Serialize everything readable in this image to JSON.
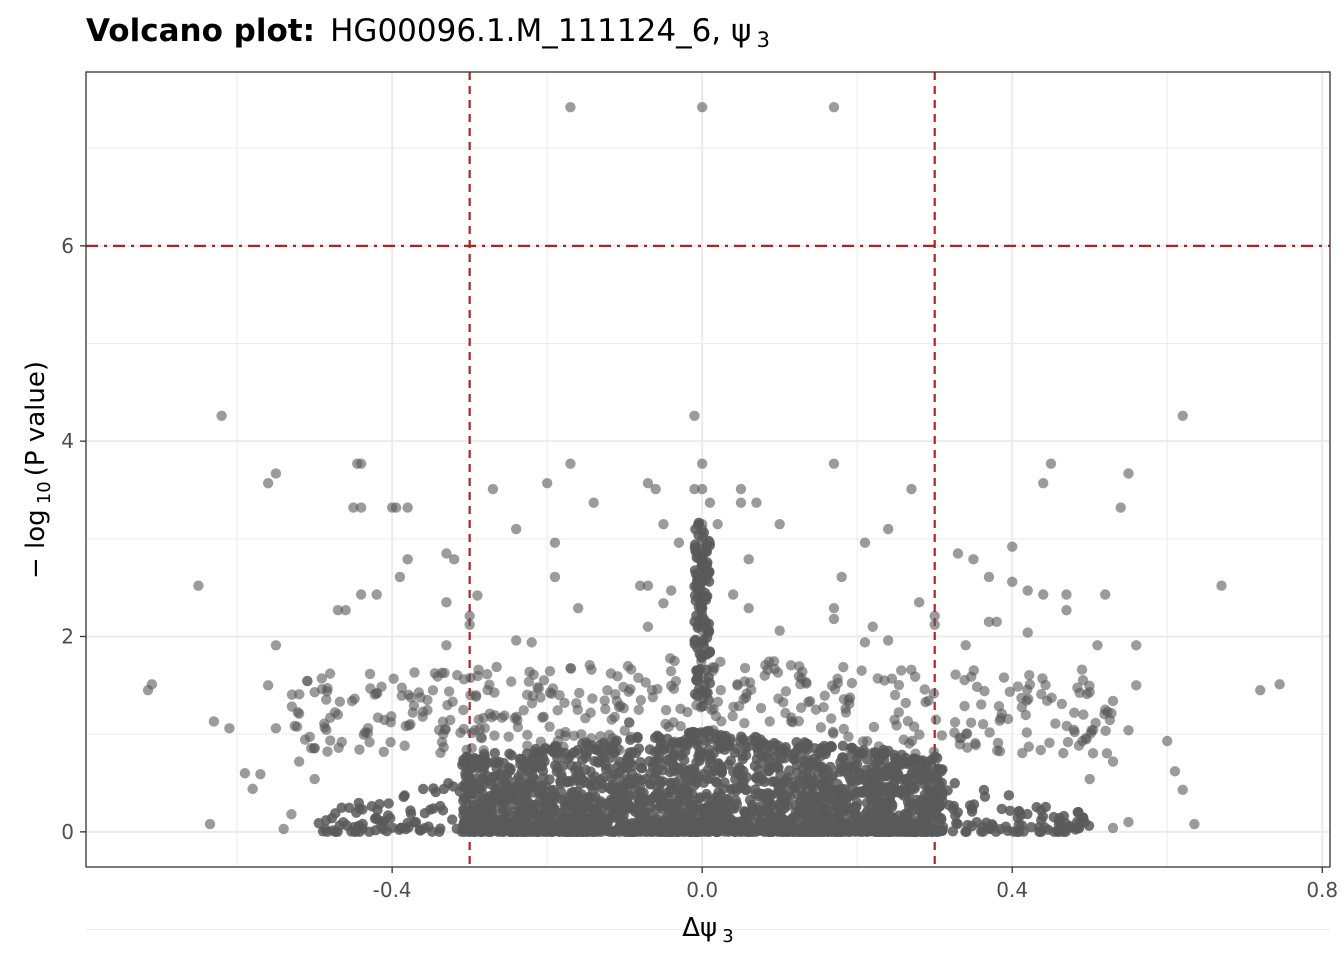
{
  "chart_data": {
    "type": "scatter",
    "title_prefix": "Volcano plot:",
    "title_gene": "HG00096.1.M_111124_6, ψ",
    "title_sub": "3",
    "xlabel_main": "Δψ",
    "xlabel_sub": "3",
    "ylabel_pre": "− log",
    "ylabel_sub": "10",
    "ylabel_post": "(P value)",
    "xlim": [
      -0.795,
      0.81
    ],
    "ylim": [
      -0.36,
      7.78
    ],
    "x_ticks": [
      -0.4,
      0.0,
      0.4,
      0.8
    ],
    "x_tick_labels": [
      "-0.4",
      "0.0",
      "0.4",
      "0.8"
    ],
    "y_ticks": [
      0,
      2,
      4,
      6
    ],
    "y_tick_labels": [
      "0",
      "2",
      "4",
      "6"
    ],
    "grid": true,
    "thresholds": {
      "delta_psi": [
        -0.3,
        0.3
      ],
      "neg_log10_p": 6
    },
    "colors": {
      "points": "#595959",
      "threshold": "#b22222",
      "grid": "#ebebeb",
      "axis_text": "#4d4d4d"
    },
    "points": [
      [
        -0.17,
        7.42
      ],
      [
        0.0,
        7.42
      ],
      [
        0.17,
        7.42
      ],
      [
        -0.62,
        4.26
      ],
      [
        0.62,
        4.26
      ],
      [
        -0.01,
        4.26
      ],
      [
        -0.44,
        3.77
      ],
      [
        -0.445,
        3.77
      ],
      [
        -0.17,
        3.77
      ],
      [
        0.17,
        3.77
      ],
      [
        0.0,
        3.77
      ],
      [
        0.45,
        3.77
      ],
      [
        -0.55,
        3.67
      ],
      [
        -0.56,
        3.57
      ],
      [
        -0.2,
        3.57
      ],
      [
        0.55,
        3.67
      ],
      [
        0.44,
        3.57
      ],
      [
        -0.07,
        3.57
      ],
      [
        -0.27,
        3.51
      ],
      [
        0.27,
        3.51
      ],
      [
        0.0,
        3.51
      ],
      [
        -0.01,
        3.51
      ],
      [
        0.05,
        3.51
      ],
      [
        -0.06,
        3.51
      ],
      [
        -0.45,
        3.32
      ],
      [
        -0.44,
        3.32
      ],
      [
        -0.4,
        3.32
      ],
      [
        -0.395,
        3.32
      ],
      [
        -0.38,
        3.32
      ],
      [
        -0.14,
        3.37
      ],
      [
        0.07,
        3.37
      ],
      [
        0.54,
        3.32
      ],
      [
        0.01,
        3.37
      ],
      [
        0.05,
        3.37
      ],
      [
        -0.24,
        3.1
      ],
      [
        0.24,
        3.1
      ],
      [
        -0.05,
        3.15
      ],
      [
        0.1,
        3.15
      ],
      [
        0.0,
        3.15
      ],
      [
        0.0,
        3.1
      ],
      [
        0.02,
        3.15
      ],
      [
        -0.19,
        2.96
      ],
      [
        0.21,
        2.96
      ],
      [
        0.4,
        2.92
      ],
      [
        -0.03,
        2.96
      ],
      [
        0.0,
        2.96
      ],
      [
        0.01,
        2.96
      ],
      [
        -0.33,
        2.85
      ],
      [
        -0.32,
        2.79
      ],
      [
        0.33,
        2.85
      ],
      [
        0.35,
        2.79
      ],
      [
        -0.38,
        2.79
      ],
      [
        0.06,
        2.79
      ],
      [
        0.0,
        2.86
      ],
      [
        0.0,
        2.77
      ],
      [
        -0.39,
        2.61
      ],
      [
        -0.19,
        2.61
      ],
      [
        0.18,
        2.61
      ],
      [
        0.37,
        2.61
      ],
      [
        0.4,
        2.56
      ],
      [
        0.0,
        2.71
      ],
      [
        -0.65,
        2.52
      ],
      [
        0.67,
        2.52
      ],
      [
        -0.07,
        2.52
      ],
      [
        -0.08,
        2.52
      ],
      [
        0.42,
        2.47
      ],
      [
        -0.44,
        2.43
      ],
      [
        -0.42,
        2.43
      ],
      [
        0.44,
        2.43
      ],
      [
        0.47,
        2.43
      ],
      [
        0.52,
        2.43
      ],
      [
        -0.29,
        2.42
      ],
      [
        -0.04,
        2.47
      ],
      [
        0.04,
        2.43
      ],
      [
        0.0,
        2.43
      ],
      [
        -0.33,
        2.35
      ],
      [
        -0.16,
        2.29
      ],
      [
        0.17,
        2.29
      ],
      [
        0.28,
        2.35
      ],
      [
        -0.47,
        2.27
      ],
      [
        -0.46,
        2.27
      ],
      [
        0.47,
        2.27
      ],
      [
        -0.3,
        2.21
      ],
      [
        0.3,
        2.21
      ],
      [
        -0.05,
        2.34
      ],
      [
        0.06,
        2.29
      ],
      [
        0.0,
        2.29
      ],
      [
        0.0,
        2.36
      ],
      [
        -0.3,
        2.12
      ],
      [
        0.3,
        2.12
      ],
      [
        0.37,
        2.15
      ],
      [
        0.38,
        2.15
      ],
      [
        0.17,
        2.18
      ],
      [
        0.22,
        2.1
      ],
      [
        -0.07,
        2.1
      ],
      [
        0.0,
        2.1
      ],
      [
        0.0,
        2.06
      ],
      [
        0.1,
        2.06
      ],
      [
        -0.55,
        1.91
      ],
      [
        0.56,
        1.91
      ],
      [
        0.51,
        1.91
      ],
      [
        -0.24,
        1.96
      ],
      [
        0.24,
        1.96
      ],
      [
        -0.22,
        1.94
      ],
      [
        0.21,
        1.94
      ],
      [
        0.34,
        1.91
      ],
      [
        -0.33,
        1.91
      ],
      [
        0.42,
        2.04
      ],
      [
        -0.71,
        1.51
      ],
      [
        -0.715,
        1.45
      ],
      [
        0.72,
        1.45
      ],
      [
        0.745,
        1.51
      ],
      [
        -0.56,
        1.5
      ],
      [
        0.56,
        1.5
      ],
      [
        -0.63,
        1.13
      ],
      [
        -0.61,
        1.06
      ],
      [
        0.6,
        0.93
      ],
      [
        0.61,
        0.62
      ],
      [
        0.62,
        0.43
      ],
      [
        -0.59,
        0.6
      ],
      [
        -0.58,
        0.44
      ],
      [
        -0.57,
        0.59
      ],
      [
        -0.635,
        0.08
      ],
      [
        0.635,
        0.08
      ],
      [
        -0.53,
        0.18
      ],
      [
        0.55,
        0.1
      ],
      [
        -0.54,
        0.03
      ],
      [
        0.53,
        0.04
      ],
      [
        -0.55,
        1.06
      ],
      [
        0.55,
        1.04
      ],
      [
        -0.5,
        0.54
      ],
      [
        0.5,
        0.54
      ],
      [
        -0.5,
        1.43
      ],
      [
        0.5,
        1.43
      ],
      [
        -0.52,
        0.72
      ],
      [
        0.53,
        0.72
      ],
      [
        -0.52,
        1.21
      ],
      [
        -0.47,
        1.2
      ],
      [
        0.48,
        1.22
      ],
      [
        0.49,
        1.66
      ],
      [
        -0.48,
        1.62
      ],
      [
        0.52,
        1.25
      ],
      [
        0.53,
        1.34
      ]
    ],
    "dense_band": {
      "description": "thousands of overlapping points concentrated near zero",
      "x_range": [
        -0.5,
        0.5
      ],
      "y_range": [
        0,
        1.9
      ]
    }
  }
}
